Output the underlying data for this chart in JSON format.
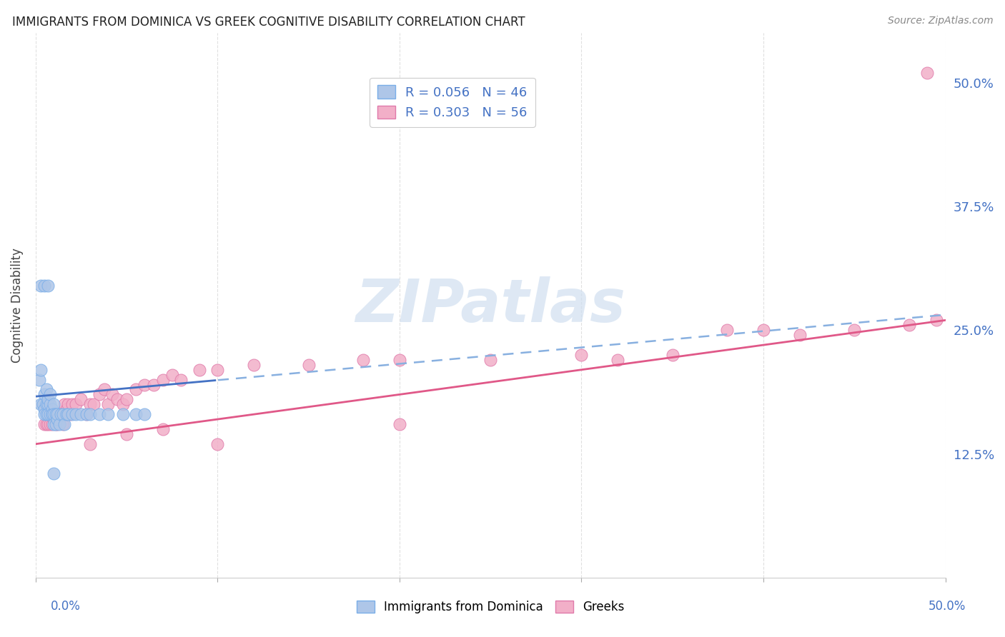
{
  "title": "IMMIGRANTS FROM DOMINICA VS GREEK COGNITIVE DISABILITY CORRELATION CHART",
  "source": "Source: ZipAtlas.com",
  "ylabel": "Cognitive Disability",
  "right_yticks": [
    "50.0%",
    "37.5%",
    "25.0%",
    "12.5%"
  ],
  "right_ytick_vals": [
    0.5,
    0.375,
    0.25,
    0.125
  ],
  "xlim": [
    0.0,
    0.5
  ],
  "ylim": [
    0.0,
    0.55
  ],
  "dominica_color": "#aec6e8",
  "greek_color": "#f2afc8",
  "dominica_edge": "#7aaee8",
  "greek_edge": "#e07aaa",
  "trendline_dom_solid_color": "#4472c4",
  "trendline_dom_dash_color": "#88b0e0",
  "trendline_greek_color": "#e05888",
  "watermark_color": "#d0dff0",
  "background_color": "#ffffff",
  "grid_color": "#e0e0e0",
  "dominica_x": [
    0.002,
    0.003,
    0.003,
    0.004,
    0.005,
    0.005,
    0.005,
    0.006,
    0.006,
    0.006,
    0.007,
    0.007,
    0.007,
    0.008,
    0.008,
    0.008,
    0.009,
    0.009,
    0.009,
    0.01,
    0.01,
    0.01,
    0.011,
    0.011,
    0.012,
    0.012,
    0.013,
    0.014,
    0.015,
    0.016,
    0.017,
    0.018,
    0.02,
    0.022,
    0.025,
    0.028,
    0.03,
    0.035,
    0.04,
    0.048,
    0.055,
    0.06,
    0.003,
    0.005,
    0.007,
    0.01
  ],
  "dominica_y": [
    0.2,
    0.21,
    0.175,
    0.175,
    0.17,
    0.185,
    0.165,
    0.19,
    0.175,
    0.165,
    0.175,
    0.165,
    0.18,
    0.175,
    0.165,
    0.185,
    0.17,
    0.165,
    0.165,
    0.175,
    0.165,
    0.155,
    0.165,
    0.155,
    0.16,
    0.165,
    0.155,
    0.165,
    0.165,
    0.155,
    0.165,
    0.165,
    0.165,
    0.165,
    0.165,
    0.165,
    0.165,
    0.165,
    0.165,
    0.165,
    0.165,
    0.165,
    0.295,
    0.295,
    0.295,
    0.105
  ],
  "greek_x": [
    0.005,
    0.006,
    0.007,
    0.008,
    0.009,
    0.01,
    0.011,
    0.012,
    0.013,
    0.014,
    0.015,
    0.016,
    0.017,
    0.018,
    0.019,
    0.02,
    0.022,
    0.025,
    0.028,
    0.03,
    0.032,
    0.035,
    0.038,
    0.04,
    0.042,
    0.045,
    0.048,
    0.05,
    0.055,
    0.06,
    0.065,
    0.07,
    0.075,
    0.08,
    0.09,
    0.1,
    0.12,
    0.15,
    0.18,
    0.2,
    0.25,
    0.3,
    0.32,
    0.35,
    0.38,
    0.4,
    0.42,
    0.45,
    0.48,
    0.49,
    0.495,
    0.03,
    0.05,
    0.07,
    0.1,
    0.2
  ],
  "greek_y": [
    0.155,
    0.155,
    0.155,
    0.155,
    0.155,
    0.16,
    0.155,
    0.155,
    0.16,
    0.165,
    0.155,
    0.175,
    0.17,
    0.175,
    0.165,
    0.175,
    0.175,
    0.18,
    0.165,
    0.175,
    0.175,
    0.185,
    0.19,
    0.175,
    0.185,
    0.18,
    0.175,
    0.18,
    0.19,
    0.195,
    0.195,
    0.2,
    0.205,
    0.2,
    0.21,
    0.21,
    0.215,
    0.215,
    0.22,
    0.22,
    0.22,
    0.225,
    0.22,
    0.225,
    0.25,
    0.25,
    0.245,
    0.25,
    0.255,
    0.51,
    0.26,
    0.135,
    0.145,
    0.15,
    0.135,
    0.155
  ]
}
